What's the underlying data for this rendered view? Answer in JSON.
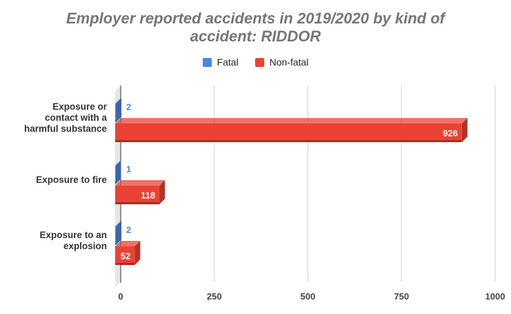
{
  "chart_data": {
    "type": "bar",
    "orientation": "horizontal",
    "style": "3d",
    "title": "Employer reported accidents in 2019/2020 by kind of accident: RIDDOR",
    "title_lines": [
      "Employer reported accidents in 2019/2020 by kind of",
      "accident: RIDDOR"
    ],
    "categories": [
      [
        "Exposure or",
        "contact with a",
        "harmful substance"
      ],
      [
        "Exposure to fire"
      ],
      [
        "Exposure to an",
        "explosion"
      ]
    ],
    "series": [
      {
        "name": "Fatal",
        "color": "#4a86e8",
        "label_color": "#4a86e8",
        "values": [
          2,
          1,
          2
        ]
      },
      {
        "name": "Non-fatal",
        "color": "#ea4335",
        "label_color": "#ffffff",
        "values": [
          926,
          118,
          52
        ]
      }
    ],
    "xlim": [
      0,
      1000
    ],
    "xticks": [
      0,
      250,
      500,
      750,
      1000
    ],
    "grid": true,
    "legend_position": "top"
  }
}
